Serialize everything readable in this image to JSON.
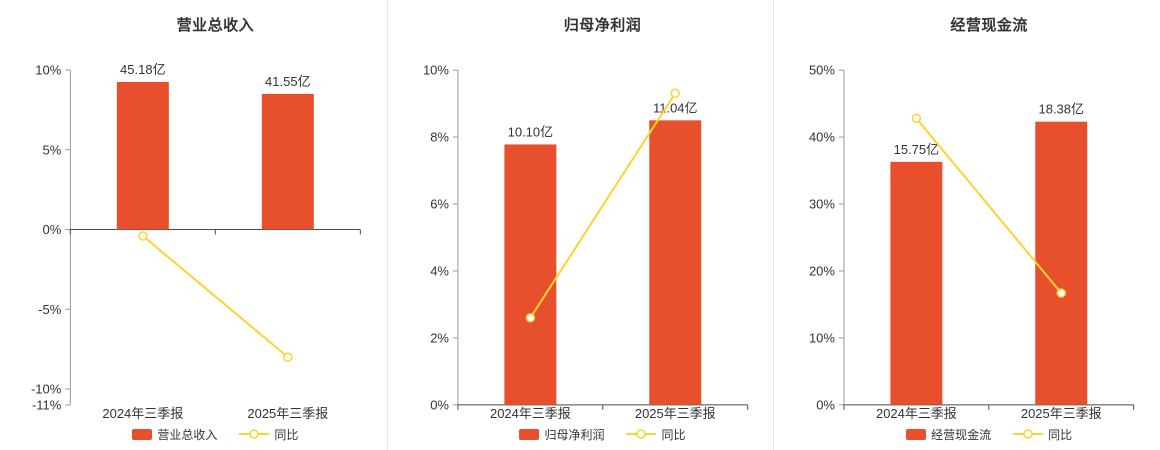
{
  "colors": {
    "bar": "#e8502d",
    "line": "#fdd32e",
    "axis": "#999999",
    "zero_line": "#4a4a4a",
    "text": "#333333",
    "divider": "#e4e4e4",
    "background": "#ffffff"
  },
  "chart_data": [
    {
      "type": "bar",
      "title": "营业总收入",
      "categories": [
        "2024年三季报",
        "2025年三季报"
      ],
      "series": [
        {
          "name": "营业总收入",
          "kind": "bar",
          "labels": [
            "45.18亿",
            "41.55亿"
          ],
          "plotted_pct": [
            9.25,
            8.5
          ]
        },
        {
          "name": "同比",
          "kind": "line",
          "values_pct": [
            -0.4,
            -8.0
          ]
        }
      ],
      "ylim": [
        -11,
        10
      ],
      "y_ticks": [
        10,
        5,
        0,
        -5,
        -10,
        -11
      ],
      "y_tick_suffix": "%",
      "grid": false,
      "legend_position": "bottom"
    },
    {
      "type": "bar",
      "title": "归母净利润",
      "categories": [
        "2024年三季报",
        "2025年三季报"
      ],
      "series": [
        {
          "name": "归母净利润",
          "kind": "bar",
          "labels": [
            "10.10亿",
            "11.04亿"
          ],
          "plotted_pct": [
            7.78,
            8.5
          ]
        },
        {
          "name": "同比",
          "kind": "line",
          "values_pct": [
            2.6,
            9.31
          ]
        }
      ],
      "ylim": [
        0,
        10
      ],
      "y_ticks": [
        10,
        8,
        6,
        4,
        2,
        0
      ],
      "y_tick_suffix": "%",
      "grid": false,
      "legend_position": "bottom"
    },
    {
      "type": "bar",
      "title": "经营现金流",
      "categories": [
        "2024年三季报",
        "2025年三季报"
      ],
      "series": [
        {
          "name": "经营现金流",
          "kind": "bar",
          "labels": [
            "15.75亿",
            "18.38亿"
          ],
          "plotted_pct": [
            36.3,
            42.3
          ]
        },
        {
          "name": "同比",
          "kind": "line",
          "values_pct": [
            42.8,
            16.7
          ]
        }
      ],
      "ylim": [
        0,
        50
      ],
      "y_ticks": [
        50,
        40,
        30,
        20,
        10,
        0
      ],
      "y_tick_suffix": "%",
      "grid": false,
      "legend_position": "bottom"
    }
  ]
}
